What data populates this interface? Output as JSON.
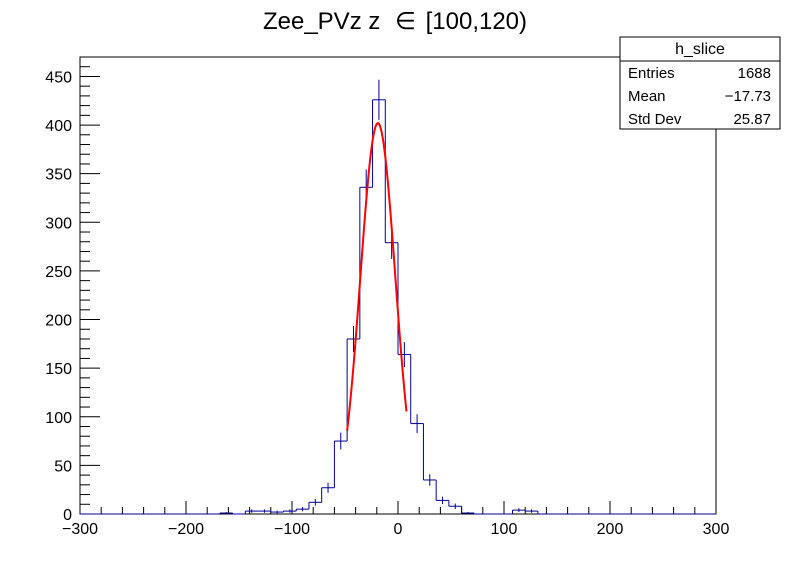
{
  "chart_data": {
    "type": "histogram",
    "title_prefix": "Zee_PVz z",
    "title_symbol": "∈",
    "title_suffix": "[100,120)",
    "xlim": [
      -300,
      300
    ],
    "ylim": [
      0,
      470
    ],
    "xticks": [
      -300,
      -200,
      -100,
      0,
      100,
      200,
      300
    ],
    "xtick_labels": [
      "−300",
      "−200",
      "−100",
      "0",
      "100",
      "200",
      "300"
    ],
    "yticks": [
      0,
      50,
      100,
      150,
      200,
      250,
      300,
      350,
      400,
      450
    ],
    "ytick_labels": [
      "0",
      "50",
      "100",
      "150",
      "200",
      "250",
      "300",
      "350",
      "400",
      "450"
    ],
    "bin_width": 12,
    "bins": [
      {
        "low": -168,
        "high": -156,
        "value": 1
      },
      {
        "low": -156,
        "high": -144,
        "value": 0
      },
      {
        "low": -144,
        "high": -132,
        "value": 3
      },
      {
        "low": -132,
        "high": -120,
        "value": 3
      },
      {
        "low": -120,
        "high": -108,
        "value": 2
      },
      {
        "low": -108,
        "high": -96,
        "value": 3
      },
      {
        "low": -96,
        "high": -84,
        "value": 5
      },
      {
        "low": -84,
        "high": -72,
        "value": 12
      },
      {
        "low": -72,
        "high": -60,
        "value": 27
      },
      {
        "low": -60,
        "high": -48,
        "value": 75
      },
      {
        "low": -48,
        "high": -36,
        "value": 180
      },
      {
        "low": -36,
        "high": -24,
        "value": 336
      },
      {
        "low": -24,
        "high": -12,
        "value": 426
      },
      {
        "low": -12,
        "high": 0,
        "value": 279
      },
      {
        "low": 0,
        "high": 12,
        "value": 164
      },
      {
        "low": 12,
        "high": 24,
        "value": 93
      },
      {
        "low": 24,
        "high": 36,
        "value": 35
      },
      {
        "low": 36,
        "high": 48,
        "value": 14
      },
      {
        "low": 48,
        "high": 60,
        "value": 8
      },
      {
        "low": 60,
        "high": 72,
        "value": 1
      },
      {
        "low": 108,
        "high": 120,
        "value": 4
      },
      {
        "low": 120,
        "high": 132,
        "value": 3
      }
    ],
    "fit": {
      "type": "gaussian",
      "amplitude": 402,
      "mean": -19,
      "sigma": 16.5,
      "x_range": [
        -48,
        8
      ],
      "color": "#ff0000"
    },
    "histogram_color": "#000099",
    "stats": {
      "name": "h_slice",
      "rows": [
        {
          "label": "Entries",
          "value": "1688"
        },
        {
          "label": "Mean",
          "value": "−17.73"
        },
        {
          "label": "Std Dev",
          "value": "25.87"
        }
      ]
    }
  }
}
